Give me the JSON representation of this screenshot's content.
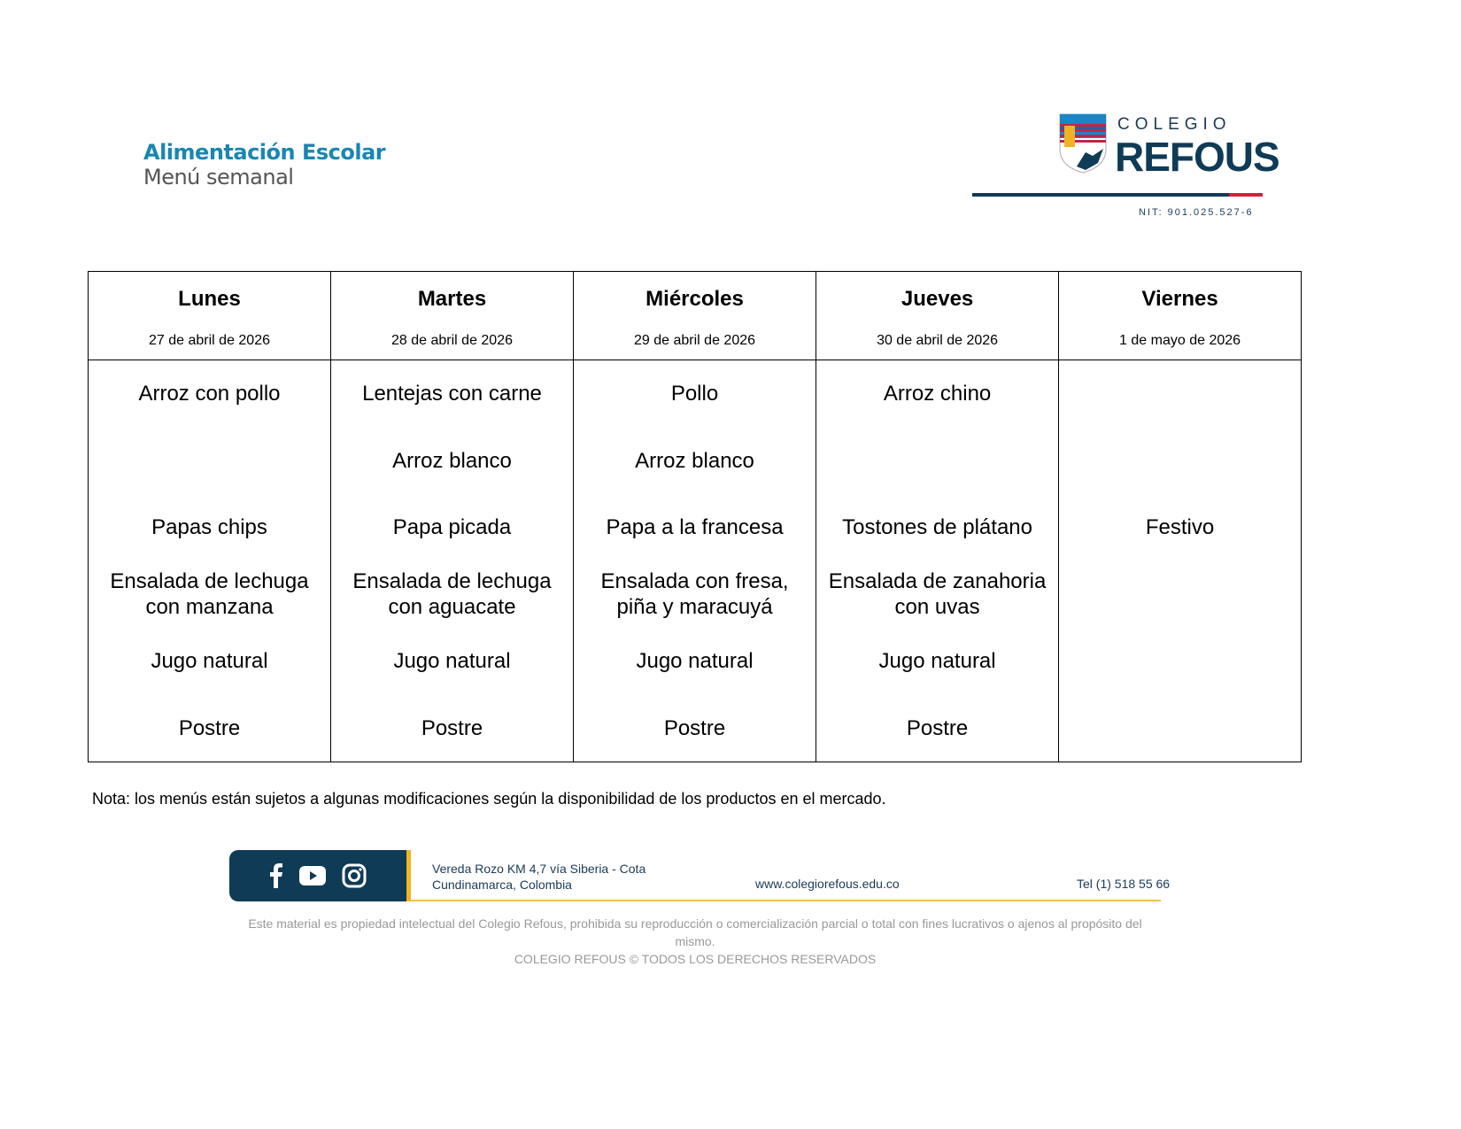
{
  "header": {
    "title": "Alimentación Escolar",
    "subtitle": "Menú semanal",
    "logo": {
      "line1": "COLEGIO",
      "line2": "REFOUS",
      "nit": "NIT: 901.025.527-6",
      "colors": {
        "navy": "#0f3b57",
        "red": "#d0223a",
        "blue": "#1a86b0"
      }
    }
  },
  "days": [
    {
      "day": "Lunes",
      "date": "27 de abril de 2026",
      "items": [
        "Arroz con pollo",
        "",
        "Papas chips",
        "Ensalada de lechuga con manzana",
        "Jugo natural",
        "Postre"
      ]
    },
    {
      "day": "Martes",
      "date": "28 de abril de 2026",
      "items": [
        "Lentejas con carne",
        "Arroz blanco",
        "Papa picada",
        "Ensalada de lechuga con aguacate",
        "Jugo natural",
        "Postre"
      ]
    },
    {
      "day": "Miércoles",
      "date": "29 de abril de 2026",
      "items": [
        "Pollo",
        "Arroz blanco",
        "Papa a la francesa",
        "Ensalada con fresa, piña y maracuyá",
        "Jugo natural",
        "Postre"
      ]
    },
    {
      "day": "Jueves",
      "date": "30 de abril de 2026",
      "items": [
        "Arroz chino",
        "",
        "Tostones de plátano",
        "Ensalada de zanahoria con uvas",
        "Jugo natural",
        "Postre"
      ]
    },
    {
      "day": "Viernes",
      "date": "1 de mayo de 2026",
      "items": [
        "",
        "",
        "Festivo",
        "",
        "",
        ""
      ]
    }
  ],
  "note": "Nota: los menús están sujetos a algunas modificaciones según la disponibilidad de los productos en el mercado.",
  "footer": {
    "social": [
      "facebook-icon",
      "youtube-icon",
      "instagram-icon"
    ],
    "address1": "Vereda Rozo KM 4,7 vía Siberia - Cota",
    "address2": "Cundinamarca, Colombia",
    "website": "www.colegiorefous.edu.co",
    "phone": "Tel (1) 518 55 66",
    "legal1": "Este material es propiedad intelectual del Colegio Refous, prohibida su reproducción o comercialización parcial o total con fines lucrativos o ajenos al propósito del mismo.",
    "legal2": "COLEGIO REFOUS © TODOS LOS DERECHOS RESERVADOS"
  }
}
